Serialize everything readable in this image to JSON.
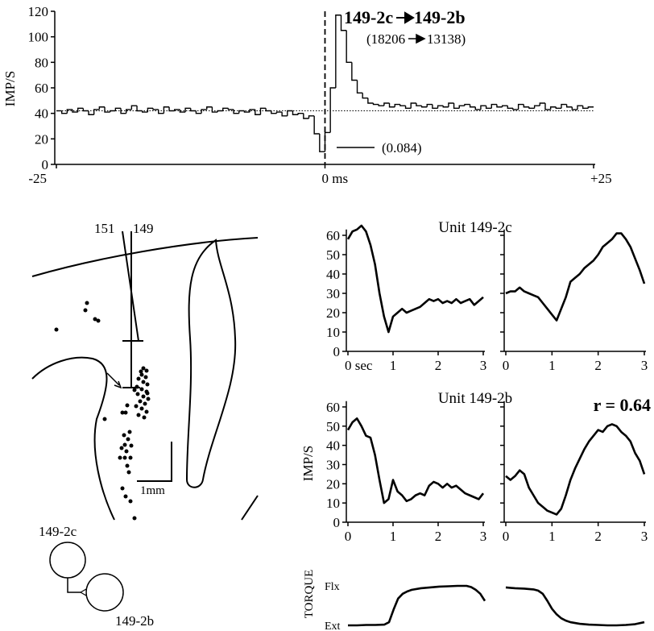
{
  "chart_data": [
    {
      "type": "histogram",
      "title": [
        "149-2c",
        "149-2b"
      ],
      "subtitle": [
        "(18206",
        "13138)"
      ],
      "annotation": "(0.084)",
      "y_label": "IMP/S",
      "bins": [
        -25,
        -24.5,
        -24,
        -23.5,
        -23,
        -22.5,
        -22,
        -21.5,
        -21,
        -20.5,
        -20,
        -19.5,
        -19,
        -18.5,
        -18,
        -17.5,
        -17,
        -16.5,
        -16,
        -15.5,
        -15,
        -14.5,
        -14,
        -13.5,
        -13,
        -12.5,
        -12,
        -11.5,
        -11,
        -10.5,
        -10,
        -9.5,
        -9,
        -8.5,
        -8,
        -7.5,
        -7,
        -6.5,
        -6,
        -5.5,
        -5,
        -4.5,
        -4,
        -3.5,
        -3,
        -2.5,
        -2,
        -1.5,
        -1,
        -0.5,
        0,
        0.5,
        1,
        1.5,
        2,
        2.5,
        3,
        3.5,
        4,
        4.5,
        5,
        5.5,
        6,
        6.5,
        7,
        7.5,
        8,
        8.5,
        9,
        9.5,
        10,
        10.5,
        11,
        11.5,
        12,
        12.5,
        13,
        13.5,
        14,
        14.5,
        15,
        15.5,
        16,
        16.5,
        17,
        17.5,
        18,
        18.5,
        19,
        19.5,
        20,
        20.5,
        21,
        21.5,
        22,
        22.5,
        23,
        23.5,
        24,
        24.5,
        25
      ],
      "values": [
        42,
        40,
        43,
        41,
        44,
        42,
        39,
        43,
        45,
        41,
        42,
        44,
        40,
        43,
        46,
        42,
        41,
        44,
        43,
        40,
        45,
        42,
        43,
        41,
        44,
        42,
        40,
        43,
        45,
        41,
        42,
        44,
        43,
        40,
        42,
        41,
        43,
        39,
        44,
        42,
        40,
        41,
        38,
        42,
        39,
        40,
        36,
        38,
        24,
        10,
        25,
        60,
        117,
        105,
        80,
        66,
        56,
        52,
        48,
        47,
        46,
        48,
        45,
        47,
        46,
        44,
        48,
        46,
        45,
        47,
        44,
        46,
        45,
        48,
        44,
        46,
        47,
        45,
        43,
        46,
        44,
        47,
        45,
        46,
        44,
        43,
        47,
        45,
        44,
        46,
        48,
        43,
        45,
        44,
        47,
        45,
        43,
        46,
        44,
        45
      ],
      "color": "#000000",
      "baseline": 42,
      "xlim": [
        -25,
        25
      ],
      "xticks": [
        -25,
        {
          "value": 0,
          "label": "0 ms"
        },
        {
          "value": 25,
          "label": "+25"
        }
      ],
      "ylim": [
        0,
        120
      ],
      "yticks": [
        0,
        20,
        40,
        60,
        80,
        100,
        120
      ]
    },
    {
      "type": "line",
      "title": "Unit 149-2c",
      "color": "#000000",
      "x": [
        0,
        0.1,
        0.2,
        0.3,
        0.4,
        0.5,
        0.6,
        0.7,
        0.8,
        0.9,
        1,
        1.1,
        1.2,
        1.3,
        1.4,
        1.5,
        1.6,
        1.7,
        1.8,
        1.9,
        2,
        2.1,
        2.2,
        2.3,
        2.4,
        2.5,
        2.6,
        2.7,
        2.8,
        2.9,
        3
      ],
      "values": [
        58,
        62,
        63,
        65,
        62,
        55,
        45,
        30,
        18,
        10,
        18,
        20,
        22,
        20,
        21,
        22,
        23,
        25,
        27,
        26,
        27,
        25,
        26,
        25,
        27,
        25,
        26,
        27,
        24,
        26,
        28
      ],
      "xlim": [
        0,
        3
      ],
      "xticks": [
        {
          "value": 0,
          "label": "0 sec"
        },
        1,
        2,
        3
      ],
      "ylim": [
        0,
        63
      ],
      "yticks": [
        0,
        10,
        20,
        30,
        40,
        50,
        60
      ]
    },
    {
      "type": "line",
      "color": "#000000",
      "show_ytick_labels": false,
      "x": [
        0,
        0.1,
        0.2,
        0.3,
        0.4,
        0.5,
        0.6,
        0.7,
        0.8,
        0.9,
        1,
        1.1,
        1.2,
        1.3,
        1.4,
        1.5,
        1.6,
        1.7,
        1.8,
        1.9,
        2,
        2.1,
        2.2,
        2.3,
        2.4,
        2.5,
        2.6,
        2.7,
        2.8,
        2.9,
        3
      ],
      "values": [
        30,
        31,
        31,
        33,
        31,
        30,
        29,
        28,
        25,
        22,
        19,
        16,
        22,
        28,
        36,
        38,
        40,
        43,
        45,
        47,
        50,
        54,
        56,
        58,
        61,
        61,
        58,
        54,
        48,
        42,
        35
      ],
      "xlim": [
        0,
        3
      ],
      "xticks": [
        0,
        1,
        2,
        3
      ],
      "ylim": [
        0,
        63
      ],
      "yticks": [
        0,
        10,
        20,
        30,
        40,
        50,
        60
      ]
    },
    {
      "type": "line",
      "title": "Unit 149-2b",
      "y_label": "IMP/S",
      "color": "#000000",
      "x": [
        0,
        0.1,
        0.2,
        0.3,
        0.4,
        0.5,
        0.6,
        0.7,
        0.8,
        0.9,
        1,
        1.1,
        1.2,
        1.3,
        1.4,
        1.5,
        1.6,
        1.7,
        1.8,
        1.9,
        2,
        2.1,
        2.2,
        2.3,
        2.4,
        2.5,
        2.6,
        2.7,
        2.8,
        2.9,
        3
      ],
      "values": [
        48,
        52,
        54,
        50,
        45,
        44,
        35,
        22,
        10,
        12,
        22,
        16,
        14,
        11,
        12,
        14,
        15,
        14,
        19,
        21,
        20,
        18,
        20,
        18,
        19,
        17,
        15,
        14,
        13,
        12,
        15
      ],
      "xlim": [
        0,
        3
      ],
      "xticks": [
        0,
        1,
        2,
        3
      ],
      "ylim": [
        0,
        63
      ],
      "yticks": [
        0,
        10,
        20,
        30,
        40,
        50,
        60
      ]
    },
    {
      "type": "line",
      "annotation": "r = 0.64",
      "color": "#000000",
      "show_ytick_labels": false,
      "x": [
        0,
        0.1,
        0.2,
        0.3,
        0.4,
        0.5,
        0.6,
        0.7,
        0.8,
        0.9,
        1,
        1.1,
        1.2,
        1.3,
        1.4,
        1.5,
        1.6,
        1.7,
        1.8,
        1.9,
        2,
        2.1,
        2.2,
        2.3,
        2.4,
        2.5,
        2.6,
        2.7,
        2.8,
        2.9,
        3
      ],
      "values": [
        24,
        22,
        24,
        27,
        25,
        18,
        14,
        10,
        8,
        6,
        5,
        4,
        7,
        14,
        22,
        28,
        33,
        38,
        42,
        45,
        48,
        47,
        50,
        51,
        50,
        47,
        45,
        42,
        36,
        32,
        25
      ],
      "xlim": [
        0,
        3
      ],
      "xticks": [
        0,
        1,
        2,
        3
      ],
      "ylim": [
        0,
        63
      ],
      "yticks": [
        0,
        10,
        20,
        30,
        40,
        50,
        60
      ]
    },
    {
      "type": "line",
      "y_label": "TORQUE",
      "color": "#000000",
      "axes": false,
      "x": [
        0,
        0.2,
        0.4,
        0.6,
        0.8,
        0.9,
        1,
        1.1,
        1.2,
        1.3,
        1.4,
        1.6,
        1.8,
        2,
        2.2,
        2.4,
        2.6,
        2.7,
        2.8,
        2.9,
        3
      ],
      "values": [
        0,
        0,
        0.01,
        0.01,
        0.02,
        0.08,
        0.4,
        0.68,
        0.8,
        0.86,
        0.9,
        0.94,
        0.96,
        0.98,
        0.99,
        1,
        1,
        0.97,
        0.9,
        0.8,
        0.62
      ],
      "xlim": [
        0,
        3
      ],
      "ylim": [
        0,
        1
      ],
      "yticks": [
        {
          "value": 0,
          "label": "Ext"
        },
        {
          "value": 1,
          "label": "Flx"
        }
      ]
    },
    {
      "type": "line",
      "color": "#000000",
      "axes": false,
      "x": [
        0,
        0.2,
        0.4,
        0.6,
        0.7,
        0.8,
        0.9,
        1,
        1.1,
        1.2,
        1.3,
        1.4,
        1.6,
        1.8,
        2,
        2.2,
        2.4,
        2.6,
        2.8,
        3
      ],
      "values": [
        0.96,
        0.94,
        0.93,
        0.91,
        0.88,
        0.8,
        0.62,
        0.42,
        0.28,
        0.18,
        0.12,
        0.08,
        0.04,
        0.02,
        0.01,
        0,
        0,
        0.01,
        0.03,
        0.08
      ],
      "xlim": [
        0,
        3
      ],
      "ylim": [
        0,
        1
      ]
    }
  ],
  "histology": {
    "electrode_labels": [
      "151",
      "149"
    ],
    "scale_label": "1mm",
    "cell_labels": [
      "149-2c",
      "149-2b"
    ]
  }
}
